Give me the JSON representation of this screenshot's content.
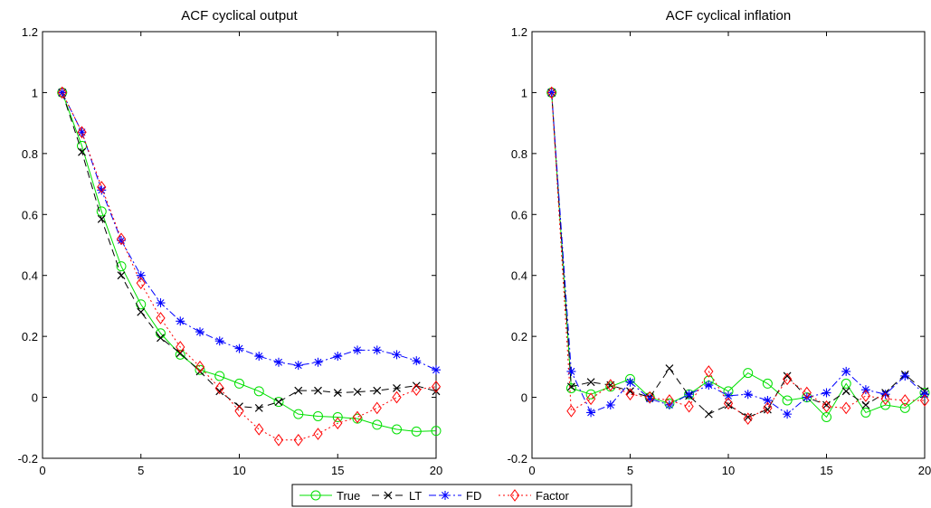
{
  "chart_data": [
    {
      "type": "line",
      "title": "ACF cyclical output",
      "xlabel": "",
      "ylabel": "",
      "xlim": [
        0,
        20
      ],
      "ylim": [
        -0.2,
        1.2
      ],
      "xticks": [
        "0",
        "5",
        "10",
        "15",
        "20"
      ],
      "yticks": [
        "-0.2",
        "0",
        "0.2",
        "0.4",
        "0.6",
        "0.8",
        "1",
        "1.2"
      ],
      "grid": false,
      "x": [
        1,
        2,
        3,
        4,
        5,
        6,
        7,
        8,
        9,
        10,
        11,
        12,
        13,
        14,
        15,
        16,
        17,
        18,
        19,
        20
      ],
      "series": [
        {
          "name": "True",
          "values": [
            1.0,
            0.825,
            0.61,
            0.43,
            0.305,
            0.21,
            0.14,
            0.09,
            0.07,
            0.045,
            0.02,
            -0.015,
            -0.055,
            -0.062,
            -0.065,
            -0.07,
            -0.09,
            -0.105,
            -0.112,
            -0.11
          ]
        },
        {
          "name": "LT",
          "values": [
            1.0,
            0.805,
            0.585,
            0.4,
            0.28,
            0.195,
            0.145,
            0.085,
            0.02,
            -0.03,
            -0.035,
            -0.015,
            0.022,
            0.022,
            0.015,
            0.018,
            0.022,
            0.03,
            0.038,
            0.02
          ]
        },
        {
          "name": "FD",
          "values": [
            1.0,
            0.87,
            0.68,
            0.515,
            0.4,
            0.31,
            0.25,
            0.215,
            0.185,
            0.16,
            0.135,
            0.115,
            0.105,
            0.115,
            0.135,
            0.155,
            0.155,
            0.14,
            0.12,
            0.09
          ]
        },
        {
          "name": "Factor",
          "values": [
            1.0,
            0.87,
            0.69,
            0.52,
            0.375,
            0.26,
            0.165,
            0.1,
            0.03,
            -0.045,
            -0.105,
            -0.14,
            -0.14,
            -0.12,
            -0.085,
            -0.065,
            -0.035,
            0.0,
            0.025,
            0.035
          ]
        }
      ]
    },
    {
      "type": "line",
      "title": "ACF cyclical inflation",
      "xlabel": "",
      "ylabel": "",
      "xlim": [
        0,
        20
      ],
      "ylim": [
        -0.2,
        1.2
      ],
      "xticks": [
        "0",
        "5",
        "10",
        "15",
        "20"
      ],
      "yticks": [
        "-0.2",
        "0",
        "0.2",
        "0.4",
        "0.6",
        "0.8",
        "1",
        "1.2"
      ],
      "grid": false,
      "x": [
        1,
        2,
        3,
        4,
        5,
        6,
        7,
        8,
        9,
        10,
        11,
        12,
        13,
        14,
        15,
        16,
        17,
        18,
        19,
        20
      ],
      "series": [
        {
          "name": "True",
          "values": [
            1.0,
            0.03,
            0.01,
            0.035,
            0.06,
            0.0,
            -0.02,
            0.01,
            0.055,
            0.02,
            0.08,
            0.045,
            -0.01,
            0.0,
            -0.065,
            0.045,
            -0.05,
            -0.025,
            -0.035,
            0.015
          ]
        },
        {
          "name": "LT",
          "values": [
            1.0,
            0.035,
            0.05,
            0.04,
            0.02,
            0.0,
            0.095,
            0.005,
            -0.055,
            -0.025,
            -0.065,
            -0.04,
            0.07,
            0.0,
            -0.025,
            0.02,
            -0.025,
            0.015,
            0.075,
            0.02
          ]
        },
        {
          "name": "FD",
          "values": [
            1.0,
            0.085,
            -0.05,
            -0.025,
            0.05,
            -0.005,
            -0.025,
            0.01,
            0.04,
            0.005,
            0.01,
            -0.01,
            -0.055,
            0.0,
            0.015,
            0.085,
            0.025,
            0.01,
            0.07,
            0.01
          ]
        },
        {
          "name": "Factor",
          "values": [
            1.0,
            -0.045,
            -0.005,
            0.04,
            0.01,
            0.0,
            -0.01,
            -0.03,
            0.085,
            -0.02,
            -0.07,
            -0.035,
            0.06,
            0.015,
            -0.03,
            -0.035,
            0.005,
            -0.005,
            -0.01,
            -0.01
          ]
        }
      ]
    }
  ],
  "legend": {
    "placement": "bottom-center",
    "entries": [
      "True",
      "LT",
      "FD",
      "Factor"
    ]
  },
  "colors": {
    "True": "#00e000",
    "LT": "#000000",
    "FD": "#0000ff",
    "Factor": "#ff0000"
  },
  "markers": {
    "True": "circle",
    "LT": "x",
    "FD": "asterisk",
    "Factor": "diamond"
  },
  "line_styles": {
    "True": "solid",
    "LT": "dashed",
    "FD": "dash-dot",
    "Factor": "dotted"
  }
}
